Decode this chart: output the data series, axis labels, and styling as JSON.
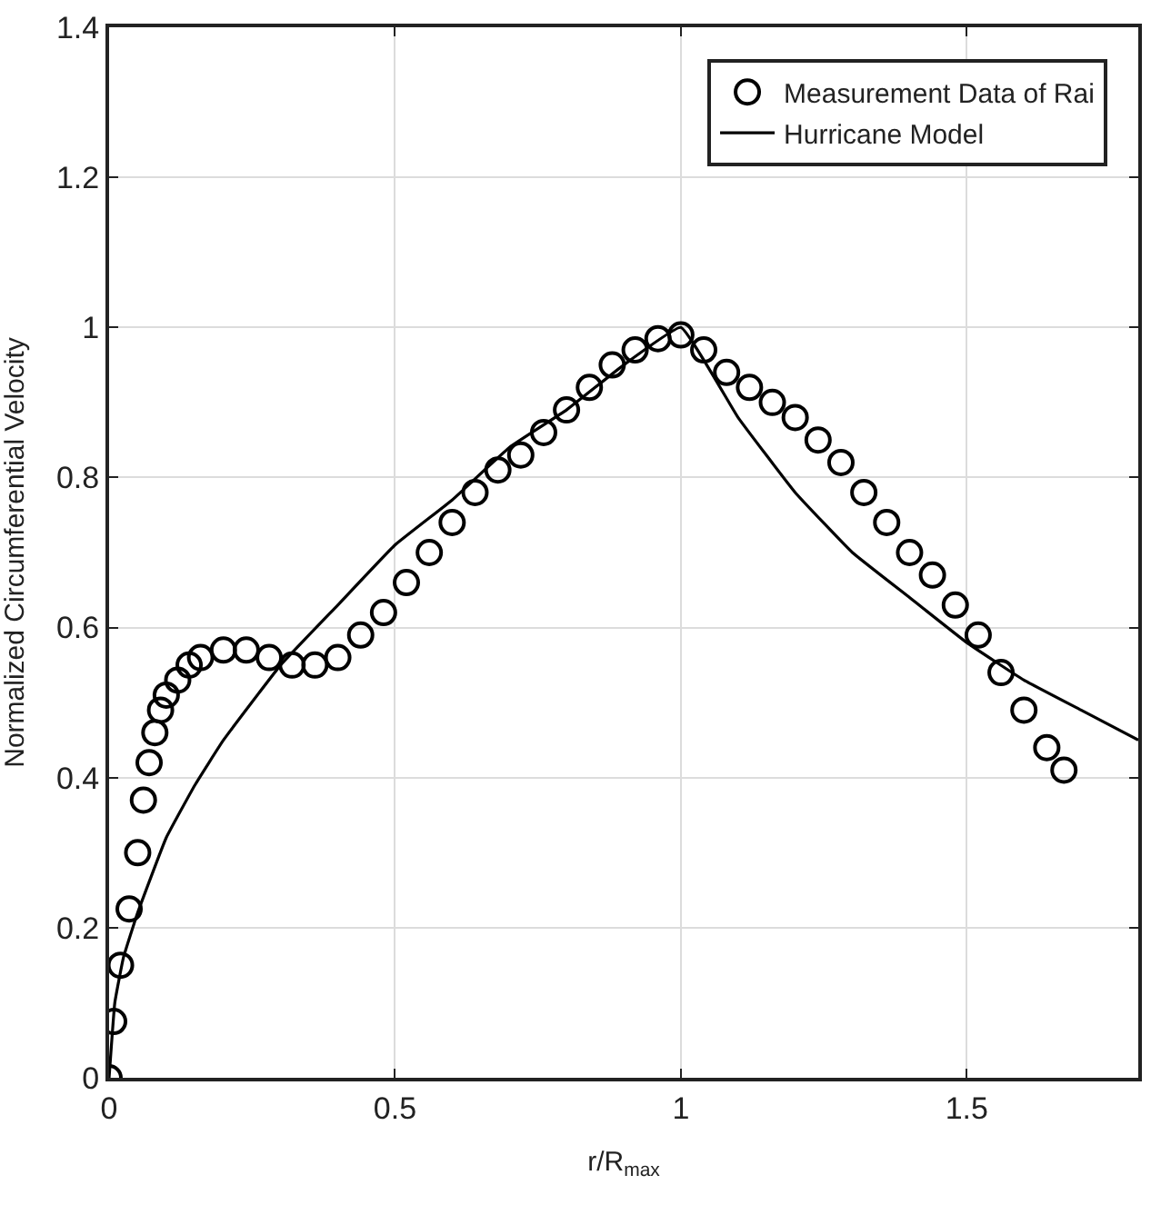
{
  "chart_data": {
    "type": "scatter",
    "xlabel": "r/R$_{max}$",
    "ylabel": "Normalized Circumferential Velocity",
    "xlim": [
      0,
      1.8
    ],
    "ylim": [
      0,
      1.4
    ],
    "xticks": [
      0,
      0.5,
      1,
      1.5
    ],
    "yticks": [
      0,
      0.2,
      0.4,
      0.6,
      0.8,
      1,
      1.2,
      1.4
    ],
    "grid": true,
    "legend": "top right",
    "series": [
      {
        "name": "Measurement Data of Rai",
        "marker": "circle",
        "color": "#000000",
        "x": [
          0,
          0.008,
          0.02,
          0.035,
          0.05,
          0.06,
          0.07,
          0.08,
          0.09,
          0.1,
          0.12,
          0.14,
          0.16,
          0.2,
          0.24,
          0.28,
          0.32,
          0.36,
          0.4,
          0.44,
          0.48,
          0.52,
          0.56,
          0.6,
          0.64,
          0.68,
          0.72,
          0.76,
          0.8,
          0.84,
          0.88,
          0.92,
          0.96,
          1.0,
          1.04,
          1.08,
          1.12,
          1.16,
          1.2,
          1.24,
          1.28,
          1.32,
          1.36,
          1.4,
          1.44,
          1.48,
          1.52,
          1.56,
          1.6,
          1.64,
          1.67
        ],
        "values": [
          0,
          0.075,
          0.15,
          0.225,
          0.3,
          0.37,
          0.42,
          0.46,
          0.49,
          0.51,
          0.53,
          0.55,
          0.56,
          0.57,
          0.57,
          0.56,
          0.55,
          0.55,
          0.56,
          0.59,
          0.62,
          0.66,
          0.7,
          0.74,
          0.78,
          0.81,
          0.83,
          0.86,
          0.89,
          0.92,
          0.95,
          0.97,
          0.985,
          0.99,
          0.97,
          0.94,
          0.92,
          0.9,
          0.88,
          0.85,
          0.82,
          0.78,
          0.74,
          0.7,
          0.67,
          0.63,
          0.59,
          0.54,
          0.49,
          0.44,
          0.41
        ]
      },
      {
        "name": "Hurricane Model",
        "type": "line",
        "marker": "none",
        "line_style": "solid",
        "color": "#000000",
        "x": [
          0,
          0.01,
          0.025,
          0.05,
          0.1,
          0.15,
          0.2,
          0.3,
          0.4,
          0.5,
          0.6,
          0.7,
          0.8,
          0.9,
          1.0,
          1.1,
          1.2,
          1.3,
          1.4,
          1.5,
          1.6,
          1.7,
          1.8
        ],
        "values": [
          0,
          0.1,
          0.16,
          0.22,
          0.32,
          0.39,
          0.45,
          0.55,
          0.63,
          0.71,
          0.77,
          0.84,
          0.89,
          0.95,
          1.0,
          0.88,
          0.78,
          0.7,
          0.64,
          0.58,
          0.53,
          0.49,
          0.45
        ]
      }
    ]
  }
}
